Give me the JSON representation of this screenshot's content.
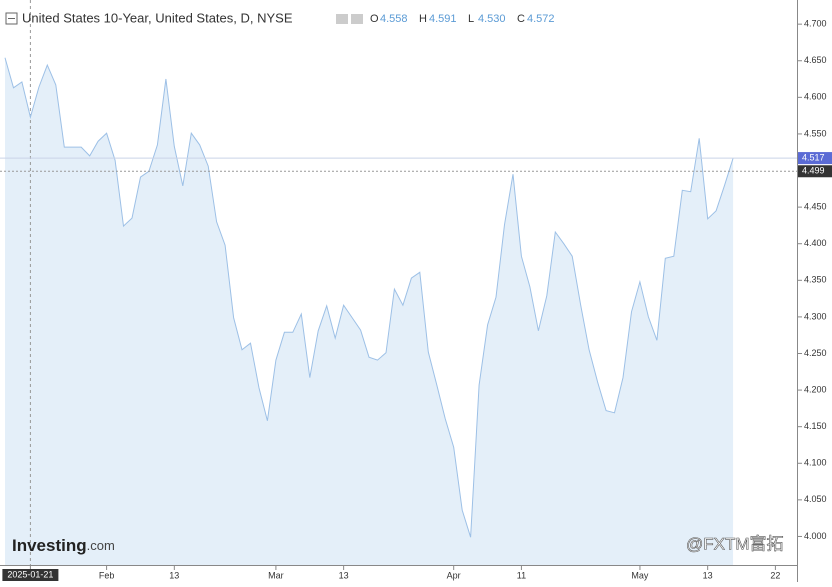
{
  "chart_data": {
    "type": "area",
    "title": "United States 10-Year, United States, D, NYSE",
    "ohlc": [
      {
        "label": "O",
        "value": "4.558"
      },
      {
        "label": "H",
        "value": "4.591"
      },
      {
        "label": "L",
        "value": "4.530"
      },
      {
        "label": "C",
        "value": "4.572"
      }
    ],
    "categories": [
      null,
      null,
      null,
      "2025-01-21",
      null,
      null,
      null,
      null,
      null,
      null,
      null,
      null,
      "Feb",
      null,
      null,
      null,
      null,
      null,
      null,
      null,
      "13",
      null,
      null,
      null,
      null,
      null,
      null,
      null,
      null,
      null,
      null,
      null,
      "Mar",
      null,
      null,
      null,
      null,
      null,
      null,
      null,
      "13",
      null,
      null,
      null,
      null,
      null,
      null,
      null,
      null,
      null,
      null,
      null,
      null,
      "Apr",
      null,
      null,
      null,
      null,
      null,
      null,
      null,
      "11",
      null,
      null,
      null,
      null,
      null,
      null,
      null,
      null,
      null,
      null,
      null,
      null,
      null,
      "May",
      null,
      null,
      null,
      null,
      null,
      null,
      null,
      "13",
      null,
      null,
      null,
      null,
      null,
      null,
      null,
      "22",
      null,
      null
    ],
    "series": [
      {
        "color": "#9dc0e6",
        "values": [
          4.654,
          4.613,
          4.621,
          4.573,
          4.614,
          4.644,
          4.617,
          4.532,
          4.532,
          4.532,
          4.52,
          4.54,
          4.551,
          4.514,
          4.424,
          4.435,
          4.491,
          4.499,
          4.535,
          4.625,
          4.533,
          4.479,
          4.551,
          4.535,
          4.506,
          4.43,
          4.398,
          4.299,
          4.255,
          4.264,
          4.203,
          4.158,
          4.241,
          4.279,
          4.279,
          4.304,
          4.217,
          4.281,
          4.315,
          4.271,
          4.316,
          4.299,
          4.282,
          4.245,
          4.241,
          4.251,
          4.338,
          4.316,
          4.353,
          4.361,
          4.252,
          4.207,
          4.161,
          4.122,
          4.036,
          3.999,
          4.207,
          4.289,
          4.327,
          4.426,
          4.495,
          4.383,
          4.341,
          4.281,
          4.329,
          4.416,
          4.4,
          4.383,
          4.316,
          4.255,
          4.211,
          4.172,
          4.169,
          4.217,
          4.307,
          4.348,
          4.3,
          4.268,
          4.38,
          4.383,
          4.473,
          4.471,
          4.544,
          4.434,
          4.445,
          4.48,
          4.517,
          null,
          null,
          null,
          null,
          null,
          null,
          null
        ]
      }
    ],
    "ylim": [
      3.961,
      4.733
    ],
    "yticks": [
      {
        "value": 4.0,
        "label": "4.000"
      },
      {
        "value": 4.05,
        "label": "4.050"
      },
      {
        "value": 4.1,
        "label": "4.100"
      },
      {
        "value": 4.15,
        "label": "4.150"
      },
      {
        "value": 4.2,
        "label": "4.200"
      },
      {
        "value": 4.25,
        "label": "4.250"
      },
      {
        "value": 4.3,
        "label": "4.300"
      },
      {
        "value": 4.35,
        "label": "4.350"
      },
      {
        "value": 4.4,
        "label": "4.400"
      },
      {
        "value": 4.45,
        "label": "4.450"
      },
      {
        "value": 4.5,
        "label": "4.500"
      },
      {
        "value": 4.55,
        "label": "4.550"
      },
      {
        "value": 4.6,
        "label": "4.600"
      },
      {
        "value": 4.65,
        "label": "4.650"
      },
      {
        "value": 4.7,
        "label": "4.700"
      }
    ],
    "last_price": 4.517,
    "last_price_color": "#5b6bd5",
    "prev_close": 4.499,
    "prev_close_color": "#333333"
  },
  "watermarks": {
    "brand": "Investing",
    "suffix": ".com",
    "broker": "@FXTM富拓"
  }
}
